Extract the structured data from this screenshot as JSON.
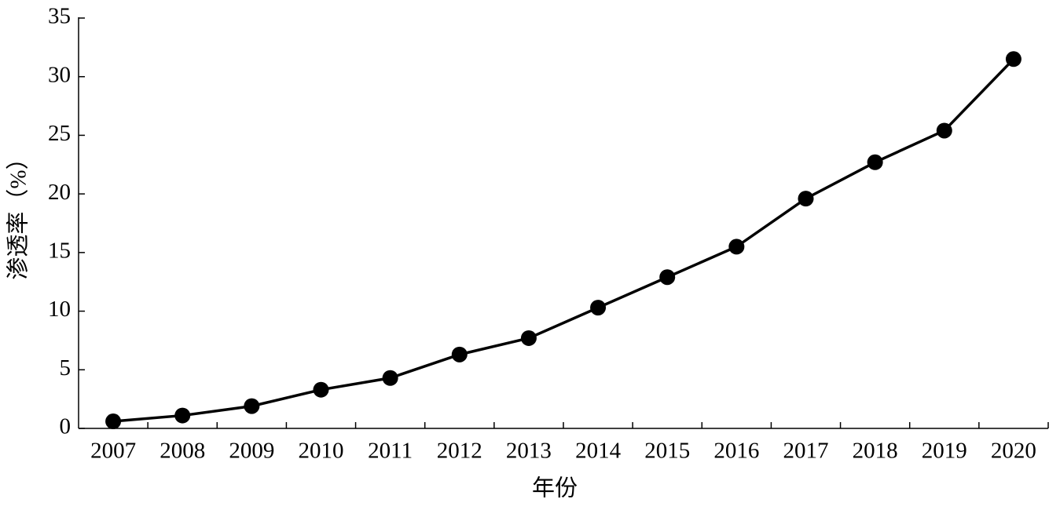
{
  "chart_data": {
    "type": "line",
    "x_label": "年份",
    "y_label": "渗透率（%）",
    "categories": [
      "2007",
      "2008",
      "2009",
      "2010",
      "2011",
      "2012",
      "2013",
      "2014",
      "2015",
      "2016",
      "2017",
      "2018",
      "2019",
      "2020"
    ],
    "values": [
      0.6,
      1.1,
      1.9,
      3.3,
      4.3,
      6.3,
      7.7,
      10.3,
      12.9,
      15.5,
      19.6,
      22.7,
      25.4,
      31.5
    ],
    "color": "#000000",
    "ylim": [
      0,
      35
    ],
    "yticks": [
      0,
      5,
      10,
      15,
      20,
      25,
      30,
      35
    ],
    "grid": false
  }
}
